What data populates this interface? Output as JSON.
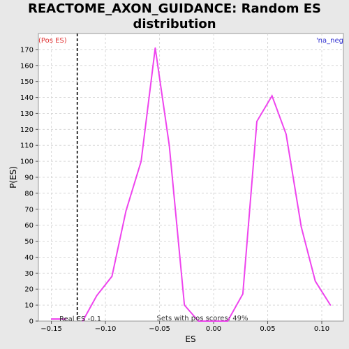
{
  "chart_data": {
    "type": "line",
    "title_lines": [
      "REACTOME_AXON_GUIDANCE: Random ES",
      "distribution"
    ],
    "xlabel": "ES",
    "ylabel": "P(ES)",
    "xlim": [
      -0.162,
      0.12
    ],
    "ylim": [
      0,
      180
    ],
    "xticks": [
      -0.15,
      -0.1,
      -0.05,
      0.0,
      0.05,
      0.1
    ],
    "xtick_labels": [
      "−0.15",
      "−0.10",
      "−0.05",
      "0.00",
      "0.05",
      "0.10"
    ],
    "yticks": [
      0,
      10,
      20,
      30,
      40,
      50,
      60,
      70,
      80,
      90,
      100,
      110,
      120,
      130,
      140,
      150,
      160,
      170
    ],
    "grid": true,
    "series": [
      {
        "color": "#ee44ee",
        "x": [
          -0.121,
          -0.108,
          -0.094,
          -0.081,
          -0.067,
          -0.054,
          -0.041,
          -0.027,
          -0.014,
          0.0,
          0.013,
          0.027,
          0.04,
          0.054,
          0.067,
          0.081,
          0.094,
          0.108
        ],
        "y": [
          0,
          16,
          28,
          69,
          100,
          171,
          110,
          10,
          0,
          0,
          0,
          17,
          125,
          141,
          117,
          59,
          25,
          10
        ]
      }
    ],
    "real_es": -0.126,
    "real_es_label": "Real ES -0.1",
    "real_es_color": "#333333",
    "legend_line_color": "#ee44ee",
    "pos_label": "(Pos ES)",
    "pos_label_color": "#e03030",
    "neg_label": "'na_neg",
    "neg_label_color": "#3030d0",
    "footer_note": "Sets with pos scores: 49%"
  }
}
